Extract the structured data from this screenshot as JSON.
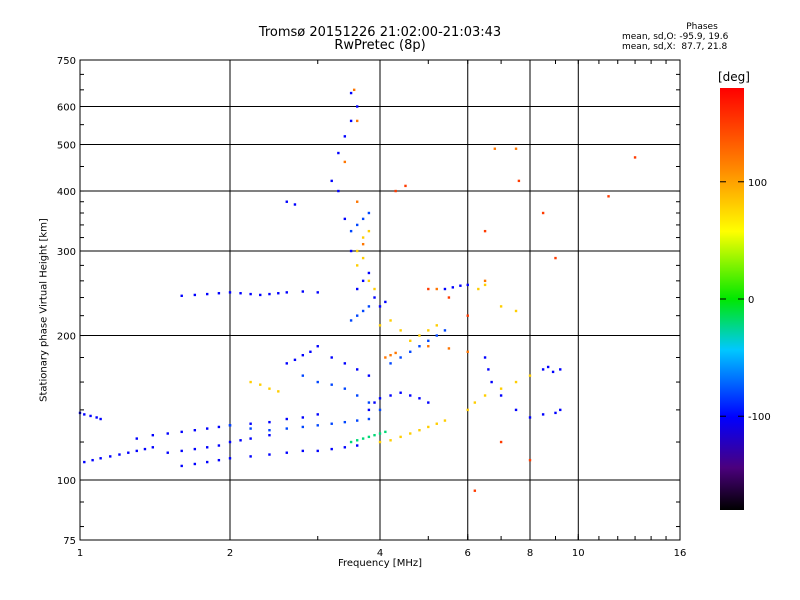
{
  "header": {
    "title_line1": "Tromsø 20151226 21:02:00-21:03:43",
    "title_line2": "RwPretec (8p)"
  },
  "phases": {
    "heading": "Phases",
    "line_o": "mean, sd,O: -95.9, 19.6",
    "line_x": "mean, sd,X:  87.7, 21.8"
  },
  "colorbar": {
    "unit": "[deg]",
    "ticks": [
      {
        "v": 100,
        "label": "100"
      },
      {
        "v": 0,
        "label": "0"
      },
      {
        "v": -100,
        "label": "-100"
      }
    ],
    "range": [
      -180,
      180
    ]
  },
  "chart_data": {
    "type": "scatter",
    "title": "Tromsø 20151226 21:02:00-21:03:43",
    "subtitle": "RwPretec (8p)",
    "xlabel": "Frequency [MHz]",
    "ylabel": "Stationary phase Virtual Height [km]",
    "x_scale": "log",
    "y_scale": "log",
    "xlim": [
      1,
      16
    ],
    "ylim": [
      75,
      750
    ],
    "grid": true,
    "x_ticks": [
      {
        "v": 1,
        "label": "1"
      },
      {
        "v": 2,
        "label": "2"
      },
      {
        "v": 4,
        "label": "4"
      },
      {
        "v": 6,
        "label": "6"
      },
      {
        "v": 8,
        "label": "8"
      },
      {
        "v": 10,
        "label": "10"
      },
      {
        "v": 16,
        "label": "16"
      }
    ],
    "y_ticks": [
      {
        "v": 75,
        "label": "75"
      },
      {
        "v": 100,
        "label": "100"
      },
      {
        "v": 200,
        "label": "200"
      },
      {
        "v": 300,
        "label": "300"
      },
      {
        "v": 400,
        "label": "400"
      },
      {
        "v": 500,
        "label": "500"
      },
      {
        "v": 600,
        "label": "600"
      },
      {
        "v": 750,
        "label": "750"
      }
    ],
    "color_encoding": "phase [deg]",
    "series": [
      {
        "color_phase": -100,
        "points": [
          [
            1.02,
            109
          ],
          [
            1.06,
            110
          ],
          [
            1.1,
            111
          ],
          [
            1.15,
            112
          ],
          [
            1.2,
            113
          ],
          [
            1.25,
            114
          ],
          [
            1.3,
            115
          ],
          [
            1.35,
            116
          ],
          [
            1.4,
            117
          ],
          [
            1.5,
            114
          ],
          [
            1.6,
            115
          ],
          [
            1.7,
            116
          ],
          [
            1.8,
            117
          ],
          [
            1.9,
            118
          ],
          [
            2.0,
            120
          ],
          [
            2.1,
            121
          ],
          [
            2.2,
            122
          ],
          [
            2.4,
            124
          ],
          [
            1.6,
            107
          ],
          [
            1.7,
            108
          ],
          [
            1.8,
            109
          ],
          [
            1.9,
            110
          ],
          [
            2.0,
            111
          ],
          [
            2.2,
            112
          ],
          [
            2.4,
            113
          ],
          [
            2.6,
            114
          ],
          [
            2.8,
            115
          ],
          [
            3.0,
            115
          ],
          [
            3.2,
            116
          ],
          [
            3.4,
            117
          ],
          [
            3.6,
            118
          ],
          [
            1.3,
            122
          ],
          [
            1.4,
            124
          ],
          [
            1.5,
            125
          ],
          [
            1.6,
            126
          ],
          [
            1.7,
            127
          ],
          [
            1.8,
            128
          ],
          [
            1.9,
            129
          ],
          [
            2.0,
            130
          ],
          [
            2.2,
            131
          ],
          [
            2.4,
            132
          ],
          [
            2.6,
            134
          ],
          [
            2.8,
            135
          ],
          [
            3.0,
            137
          ],
          [
            1.0,
            138
          ],
          [
            1.02,
            137
          ],
          [
            1.05,
            136
          ],
          [
            1.08,
            135
          ],
          [
            1.1,
            134
          ],
          [
            1.6,
            242
          ],
          [
            1.7,
            243
          ],
          [
            1.8,
            244
          ],
          [
            1.9,
            245
          ],
          [
            2.0,
            246
          ],
          [
            2.1,
            245
          ],
          [
            2.2,
            244
          ],
          [
            2.3,
            243
          ],
          [
            2.4,
            244
          ],
          [
            2.5,
            245
          ],
          [
            2.6,
            246
          ],
          [
            2.8,
            247
          ],
          [
            3.0,
            246
          ],
          [
            2.6,
            380
          ],
          [
            2.7,
            375
          ],
          [
            3.2,
            420
          ],
          [
            3.3,
            480
          ],
          [
            3.4,
            520
          ],
          [
            3.5,
            560
          ],
          [
            3.6,
            600
          ],
          [
            3.5,
            640
          ],
          [
            3.3,
            400
          ],
          [
            3.4,
            350
          ],
          [
            3.5,
            300
          ],
          [
            3.6,
            250
          ],
          [
            3.7,
            260
          ],
          [
            3.8,
            270
          ],
          [
            3.9,
            240
          ],
          [
            4.0,
            230
          ],
          [
            4.1,
            235
          ],
          [
            3.2,
            180
          ],
          [
            3.4,
            175
          ],
          [
            3.6,
            170
          ],
          [
            3.8,
            165
          ],
          [
            3.0,
            190
          ],
          [
            2.9,
            185
          ],
          [
            2.8,
            182
          ],
          [
            2.7,
            178
          ],
          [
            2.6,
            175
          ],
          [
            3.8,
            140
          ],
          [
            3.9,
            145
          ],
          [
            4.0,
            148
          ],
          [
            4.2,
            150
          ],
          [
            4.4,
            152
          ],
          [
            4.6,
            150
          ],
          [
            4.8,
            148
          ],
          [
            5.0,
            145
          ],
          [
            6.5,
            180
          ],
          [
            6.6,
            170
          ],
          [
            6.7,
            160
          ],
          [
            7.0,
            150
          ],
          [
            7.5,
            140
          ],
          [
            8.0,
            135
          ],
          [
            8.5,
            137
          ],
          [
            9.0,
            138
          ],
          [
            9.2,
            140
          ],
          [
            8.5,
            170
          ],
          [
            8.7,
            172
          ],
          [
            8.9,
            168
          ],
          [
            9.2,
            170
          ],
          [
            5.4,
            250
          ],
          [
            5.6,
            252
          ],
          [
            5.8,
            254
          ],
          [
            6.0,
            255
          ]
        ]
      },
      {
        "color_phase": -80,
        "points": [
          [
            2.0,
            130
          ],
          [
            2.2,
            128
          ],
          [
            2.4,
            127
          ],
          [
            2.6,
            128
          ],
          [
            2.8,
            129
          ],
          [
            3.0,
            130
          ],
          [
            3.2,
            131
          ],
          [
            3.4,
            132
          ],
          [
            3.6,
            133
          ],
          [
            3.8,
            134
          ],
          [
            2.8,
            165
          ],
          [
            3.0,
            160
          ],
          [
            3.2,
            158
          ],
          [
            3.4,
            155
          ],
          [
            3.6,
            150
          ],
          [
            3.8,
            145
          ],
          [
            4.0,
            140
          ],
          [
            4.2,
            175
          ],
          [
            4.4,
            180
          ],
          [
            4.6,
            185
          ],
          [
            4.8,
            190
          ],
          [
            5.0,
            195
          ],
          [
            5.2,
            200
          ],
          [
            5.4,
            205
          ],
          [
            3.5,
            215
          ],
          [
            3.6,
            220
          ],
          [
            3.7,
            225
          ],
          [
            3.8,
            230
          ],
          [
            3.5,
            330
          ],
          [
            3.6,
            340
          ],
          [
            3.7,
            350
          ],
          [
            3.8,
            360
          ]
        ]
      },
      {
        "color_phase": -20,
        "points": [
          [
            3.5,
            120
          ],
          [
            3.6,
            121
          ],
          [
            3.7,
            122
          ],
          [
            3.8,
            123
          ],
          [
            3.9,
            124
          ],
          [
            4.0,
            125
          ],
          [
            4.1,
            126
          ]
        ]
      },
      {
        "color_phase": 80,
        "points": [
          [
            3.6,
            300
          ],
          [
            3.7,
            320
          ],
          [
            3.8,
            330
          ],
          [
            3.7,
            290
          ],
          [
            3.6,
            280
          ],
          [
            3.8,
            260
          ],
          [
            3.9,
            250
          ],
          [
            4.0,
            120
          ],
          [
            4.2,
            121
          ],
          [
            4.4,
            123
          ],
          [
            4.6,
            125
          ],
          [
            4.8,
            127
          ],
          [
            5.0,
            129
          ],
          [
            5.2,
            131
          ],
          [
            5.4,
            133
          ],
          [
            4.0,
            210
          ],
          [
            4.2,
            215
          ],
          [
            4.4,
            205
          ],
          [
            4.6,
            195
          ],
          [
            4.8,
            200
          ],
          [
            5.0,
            205
          ],
          [
            5.2,
            210
          ],
          [
            6.0,
            140
          ],
          [
            6.2,
            145
          ],
          [
            6.5,
            150
          ],
          [
            7.0,
            155
          ],
          [
            7.5,
            160
          ],
          [
            8.0,
            165
          ],
          [
            6.3,
            250
          ],
          [
            6.5,
            255
          ],
          [
            7.0,
            230
          ],
          [
            7.5,
            225
          ],
          [
            2.2,
            160
          ],
          [
            2.3,
            158
          ],
          [
            2.4,
            155
          ],
          [
            2.5,
            153
          ]
        ]
      },
      {
        "color_phase": 120,
        "points": [
          [
            3.7,
            310
          ],
          [
            3.6,
            380
          ],
          [
            3.4,
            460
          ],
          [
            3.6,
            560
          ],
          [
            3.55,
            650
          ],
          [
            4.1,
            180
          ],
          [
            4.2,
            182
          ],
          [
            4.3,
            184
          ],
          [
            5.0,
            190
          ],
          [
            5.5,
            188
          ],
          [
            6.0,
            185
          ],
          [
            5.2,
            250
          ],
          [
            6.5,
            260
          ],
          [
            6.8,
            490
          ],
          [
            7.5,
            490
          ]
        ]
      },
      {
        "color_phase": 150,
        "points": [
          [
            4.3,
            400
          ],
          [
            4.5,
            410
          ],
          [
            5.0,
            250
          ],
          [
            5.5,
            240
          ],
          [
            6.0,
            220
          ],
          [
            7.0,
            120
          ],
          [
            8.0,
            110
          ],
          [
            6.2,
            95
          ],
          [
            7.6,
            420
          ],
          [
            8.5,
            360
          ],
          [
            9.0,
            290
          ],
          [
            11.5,
            390
          ],
          [
            13.0,
            470
          ],
          [
            6.5,
            330
          ]
        ]
      }
    ]
  }
}
